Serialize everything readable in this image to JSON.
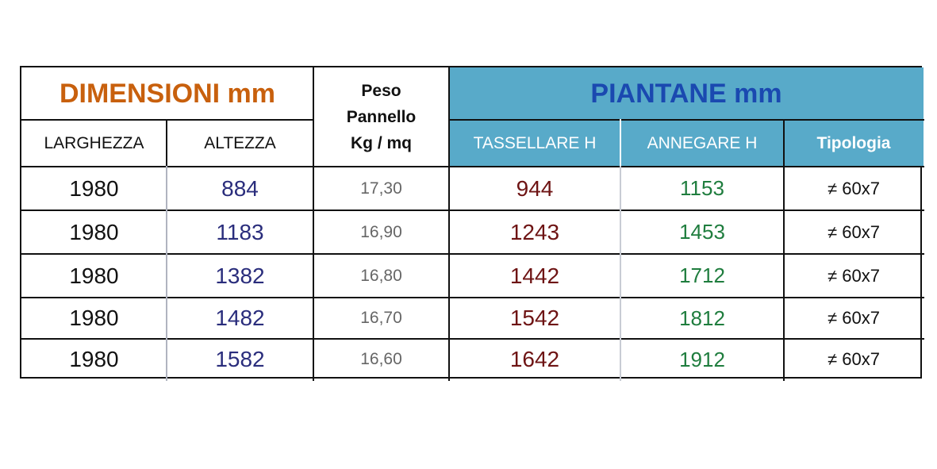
{
  "table": {
    "group_headers": {
      "dimensioni": "DIMENSIONI mm",
      "peso": [
        "Peso",
        "Pannello",
        "Kg / mq"
      ],
      "piantane": "PIANTANE mm"
    },
    "columns": [
      "LARGHEZZA",
      "ALTEZZA",
      "TASSELLARE H",
      "ANNEGARE H",
      "Tipologia"
    ],
    "rows": [
      [
        "1980",
        "884",
        "17,30",
        "944",
        "1153",
        "≠ 60x7"
      ],
      [
        "1980",
        "1183",
        "16,90",
        "1243",
        "1453",
        "≠ 60x7"
      ],
      [
        "1980",
        "1382",
        "16,80",
        "1442",
        "1712",
        "≠ 60x7"
      ],
      [
        "1980",
        "1482",
        "16,70",
        "1542",
        "1812",
        "≠ 60x7"
      ],
      [
        "1980",
        "1582",
        "16,60",
        "1642",
        "1912",
        "≠ 60x7"
      ]
    ]
  }
}
